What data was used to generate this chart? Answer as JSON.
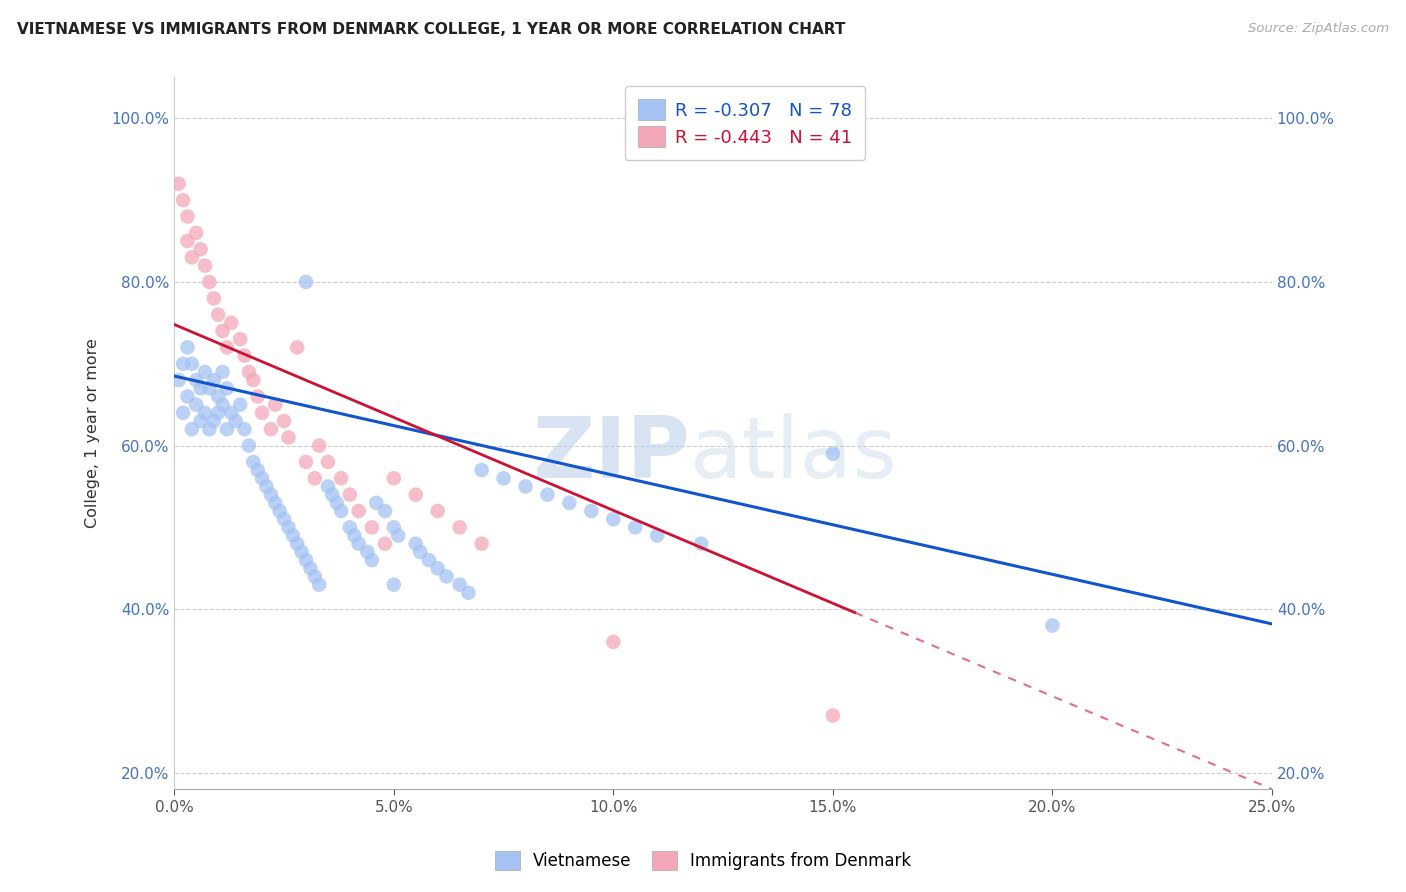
{
  "title": "VIETNAMESE VS IMMIGRANTS FROM DENMARK COLLEGE, 1 YEAR OR MORE CORRELATION CHART",
  "source": "Source: ZipAtlas.com",
  "ylabel": "College, 1 year or more",
  "xlim": [
    0.0,
    0.25
  ],
  "ylim": [
    0.18,
    1.05
  ],
  "xticks": [
    0.0,
    0.05,
    0.1,
    0.15,
    0.2,
    0.25
  ],
  "yticks": [
    0.2,
    0.4,
    0.6,
    0.8,
    1.0
  ],
  "xtick_labels": [
    "0.0%",
    "5.0%",
    "10.0%",
    "15.0%",
    "20.0%",
    "25.0%"
  ],
  "ytick_labels": [
    "20.0%",
    "40.0%",
    "60.0%",
    "80.0%",
    "100.0%"
  ],
  "blue_color": "#a4c2f4",
  "pink_color": "#f4a7b9",
  "blue_line_color": "#1155cc",
  "pink_line_color": "#cc1133",
  "R_blue": -0.307,
  "N_blue": 78,
  "R_pink": -0.443,
  "N_pink": 41,
  "legend_label_blue": "Vietnamese",
  "legend_label_pink": "Immigrants from Denmark",
  "watermark_zip": "ZIP",
  "watermark_atlas": "atlas",
  "blue_x": [
    0.001,
    0.002,
    0.002,
    0.003,
    0.003,
    0.004,
    0.004,
    0.005,
    0.005,
    0.006,
    0.006,
    0.007,
    0.007,
    0.008,
    0.008,
    0.009,
    0.009,
    0.01,
    0.01,
    0.011,
    0.011,
    0.012,
    0.012,
    0.013,
    0.014,
    0.015,
    0.016,
    0.017,
    0.018,
    0.019,
    0.02,
    0.021,
    0.022,
    0.023,
    0.024,
    0.025,
    0.026,
    0.027,
    0.028,
    0.029,
    0.03,
    0.031,
    0.032,
    0.033,
    0.035,
    0.036,
    0.037,
    0.038,
    0.04,
    0.041,
    0.042,
    0.044,
    0.045,
    0.046,
    0.048,
    0.05,
    0.051,
    0.055,
    0.056,
    0.058,
    0.06,
    0.062,
    0.065,
    0.067,
    0.07,
    0.075,
    0.08,
    0.085,
    0.09,
    0.095,
    0.1,
    0.105,
    0.11,
    0.12,
    0.15,
    0.2,
    0.03,
    0.05
  ],
  "blue_y": [
    0.68,
    0.64,
    0.7,
    0.66,
    0.72,
    0.62,
    0.7,
    0.65,
    0.68,
    0.63,
    0.67,
    0.64,
    0.69,
    0.62,
    0.67,
    0.63,
    0.68,
    0.64,
    0.66,
    0.65,
    0.69,
    0.62,
    0.67,
    0.64,
    0.63,
    0.65,
    0.62,
    0.6,
    0.58,
    0.57,
    0.56,
    0.55,
    0.54,
    0.53,
    0.52,
    0.51,
    0.5,
    0.49,
    0.48,
    0.47,
    0.46,
    0.45,
    0.44,
    0.43,
    0.55,
    0.54,
    0.53,
    0.52,
    0.5,
    0.49,
    0.48,
    0.47,
    0.46,
    0.53,
    0.52,
    0.5,
    0.49,
    0.48,
    0.47,
    0.46,
    0.45,
    0.44,
    0.43,
    0.42,
    0.57,
    0.56,
    0.55,
    0.54,
    0.53,
    0.52,
    0.51,
    0.5,
    0.49,
    0.48,
    0.59,
    0.38,
    0.8,
    0.43
  ],
  "pink_x": [
    0.001,
    0.002,
    0.003,
    0.003,
    0.004,
    0.005,
    0.006,
    0.007,
    0.008,
    0.009,
    0.01,
    0.011,
    0.012,
    0.013,
    0.015,
    0.016,
    0.017,
    0.018,
    0.019,
    0.02,
    0.022,
    0.023,
    0.025,
    0.026,
    0.028,
    0.03,
    0.032,
    0.033,
    0.035,
    0.038,
    0.04,
    0.042,
    0.045,
    0.048,
    0.05,
    0.055,
    0.06,
    0.065,
    0.07,
    0.1,
    0.15
  ],
  "pink_y": [
    0.92,
    0.9,
    0.88,
    0.85,
    0.83,
    0.86,
    0.84,
    0.82,
    0.8,
    0.78,
    0.76,
    0.74,
    0.72,
    0.75,
    0.73,
    0.71,
    0.69,
    0.68,
    0.66,
    0.64,
    0.62,
    0.65,
    0.63,
    0.61,
    0.72,
    0.58,
    0.56,
    0.6,
    0.58,
    0.56,
    0.54,
    0.52,
    0.5,
    0.48,
    0.56,
    0.54,
    0.52,
    0.5,
    0.48,
    0.36,
    0.27
  ]
}
